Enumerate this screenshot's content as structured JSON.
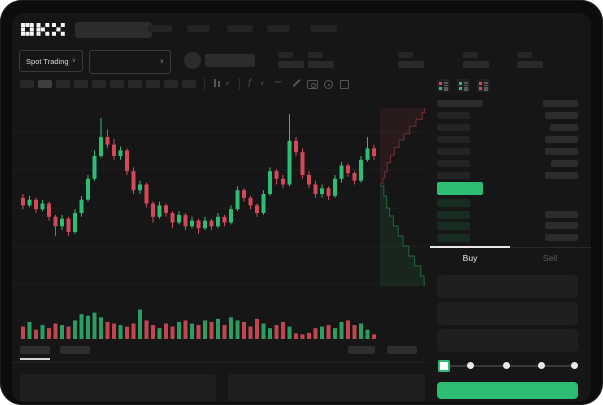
{
  "app": {
    "name": "OKX",
    "logo_text": "OKX"
  },
  "colors": {
    "green": "#2ebd74",
    "red": "#d5485a",
    "vol_green": "#2a9d62",
    "vol_red": "#c2454f",
    "bid_row_bg": "rgba(46,189,112,0.14)",
    "depth_ask_fill": "rgba(213,72,90,0.10)",
    "depth_ask_line": "rgba(213,72,90,0.45)",
    "depth_bid_fill": "rgba(46,189,112,0.10)",
    "depth_bid_line": "rgba(46,189,112,0.45)"
  },
  "navbar": {
    "nav_item_count": 5,
    "search_placeholder": ""
  },
  "market_selector": {
    "label": "Spot Trading",
    "chevron": "∨"
  },
  "ticker_stats": {
    "group_count": 5
  },
  "chart_toolbar": {
    "timeframe_pill_count": 10,
    "active_pill_index": 1,
    "icons": [
      "divider",
      "candle-style-icon",
      "chevron-down-icon",
      "divider",
      "indicators-icon",
      "chevron-down-icon",
      "line-wave-icon",
      "draw-icon",
      "camera-icon",
      "settings-icon",
      "fullscreen-icon"
    ]
  },
  "chart_data": {
    "type": "candlestick",
    "title": "",
    "xlabel": "",
    "ylabel": "",
    "note": "no axis labels visible; values in relative price units 0-100",
    "ylim": [
      0,
      100
    ],
    "grid": true,
    "candles_ochl": [
      [
        48,
        44,
        50,
        42
      ],
      [
        44,
        47,
        49,
        43
      ],
      [
        47,
        42,
        48,
        40
      ],
      [
        42,
        45,
        47,
        41
      ],
      [
        45,
        38,
        46,
        36
      ],
      [
        38,
        33,
        39,
        28
      ],
      [
        33,
        37,
        39,
        31
      ],
      [
        37,
        30,
        38,
        28
      ],
      [
        30,
        40,
        42,
        29
      ],
      [
        40,
        47,
        49,
        38
      ],
      [
        47,
        58,
        60,
        46
      ],
      [
        58,
        70,
        73,
        57
      ],
      [
        70,
        80,
        90,
        69
      ],
      [
        80,
        76,
        84,
        74
      ],
      [
        76,
        70,
        79,
        68
      ],
      [
        70,
        73,
        75,
        68
      ],
      [
        73,
        62,
        74,
        60
      ],
      [
        62,
        52,
        64,
        50
      ],
      [
        52,
        55,
        57,
        50
      ],
      [
        55,
        45,
        56,
        43
      ],
      [
        45,
        38,
        46,
        35
      ],
      [
        38,
        44,
        46,
        37
      ],
      [
        44,
        40,
        45,
        38
      ],
      [
        40,
        35,
        41,
        32
      ],
      [
        35,
        39,
        41,
        34
      ],
      [
        39,
        33,
        40,
        31
      ],
      [
        33,
        36,
        38,
        32
      ],
      [
        36,
        32,
        37,
        29
      ],
      [
        32,
        36,
        38,
        31
      ],
      [
        36,
        33,
        37,
        31
      ],
      [
        33,
        38,
        40,
        32
      ],
      [
        38,
        35,
        39,
        33
      ],
      [
        35,
        42,
        44,
        34
      ],
      [
        42,
        52,
        54,
        41
      ],
      [
        52,
        48,
        53,
        46
      ],
      [
        48,
        44,
        49,
        42
      ],
      [
        44,
        40,
        45,
        38
      ],
      [
        40,
        50,
        52,
        39
      ],
      [
        50,
        62,
        64,
        49
      ],
      [
        62,
        58,
        63,
        55
      ],
      [
        58,
        55,
        60,
        53
      ],
      [
        55,
        78,
        92,
        54
      ],
      [
        78,
        72,
        80,
        70
      ],
      [
        72,
        60,
        74,
        58
      ],
      [
        60,
        55,
        62,
        53
      ],
      [
        55,
        50,
        57,
        48
      ],
      [
        50,
        53,
        55,
        48
      ],
      [
        53,
        49,
        54,
        47
      ],
      [
        49,
        58,
        60,
        48
      ],
      [
        58,
        65,
        67,
        56
      ],
      [
        65,
        61,
        66,
        59
      ],
      [
        61,
        57,
        62,
        55
      ],
      [
        57,
        68,
        70,
        56
      ],
      [
        68,
        74,
        80,
        67
      ],
      [
        74,
        70,
        76,
        68
      ]
    ],
    "volumes": [
      40,
      55,
      30,
      45,
      35,
      50,
      45,
      40,
      60,
      80,
      75,
      85,
      70,
      55,
      50,
      45,
      40,
      50,
      95,
      60,
      45,
      35,
      50,
      40,
      55,
      60,
      50,
      45,
      60,
      55,
      65,
      45,
      70,
      60,
      55,
      40,
      65,
      50,
      35,
      45,
      55,
      40,
      18,
      15,
      20,
      35,
      40,
      45,
      35,
      55,
      60,
      45,
      50,
      30,
      15
    ],
    "depth": {
      "asks_steps": [
        [
          0.03,
          0
        ],
        [
          0.06,
          0.08
        ],
        [
          0.1,
          0.16
        ],
        [
          0.15,
          0.28
        ],
        [
          0.22,
          0.38
        ],
        [
          0.3,
          0.48
        ],
        [
          0.4,
          0.58
        ],
        [
          0.5,
          0.66
        ],
        [
          0.62,
          0.76
        ],
        [
          0.75,
          0.85
        ],
        [
          0.88,
          0.94
        ],
        [
          0.93,
          1
        ]
      ],
      "bids_steps": [
        [
          0.03,
          0
        ],
        [
          0.08,
          0.1
        ],
        [
          0.14,
          0.22
        ],
        [
          0.2,
          0.3
        ],
        [
          0.28,
          0.4
        ],
        [
          0.38,
          0.5
        ],
        [
          0.48,
          0.6
        ],
        [
          0.6,
          0.7
        ],
        [
          0.72,
          0.8
        ],
        [
          0.85,
          0.9
        ],
        [
          0.92,
          1
        ]
      ]
    }
  },
  "orderbook": {
    "view_icons": [
      "book-view-both-icon",
      "book-view-buys-icon",
      "book-view-sells-icon"
    ],
    "header": {
      "price_w": 46,
      "amount_w": 35
    },
    "asks": [
      {
        "price_w": 33,
        "amount_w": 33
      },
      {
        "price_w": 33,
        "amount_w": 28
      },
      {
        "price_w": 33,
        "amount_w": 33
      },
      {
        "price_w": 33,
        "amount_w": 33
      },
      {
        "price_w": 33,
        "amount_w": 27
      },
      {
        "price_w": 33,
        "amount_w": 33
      }
    ],
    "last_price_row": {
      "w": 46
    },
    "bids": [
      {
        "price_w": 33,
        "amount_w": 0
      },
      {
        "price_w": 33,
        "amount_w": 33
      },
      {
        "price_w": 33,
        "amount_w": 33
      },
      {
        "price_w": 33,
        "amount_w": 33
      }
    ]
  },
  "order_form": {
    "tabs": [
      {
        "label": "Buy",
        "active": true
      },
      {
        "label": "Sell",
        "active": false
      }
    ],
    "field_count": 3,
    "slider": {
      "dot_count": 5,
      "active_index": 0
    },
    "submit_label": ""
  },
  "chart_footer": {
    "tab_count": 2,
    "active_tab_index": 0,
    "right_pill_count": 2
  }
}
